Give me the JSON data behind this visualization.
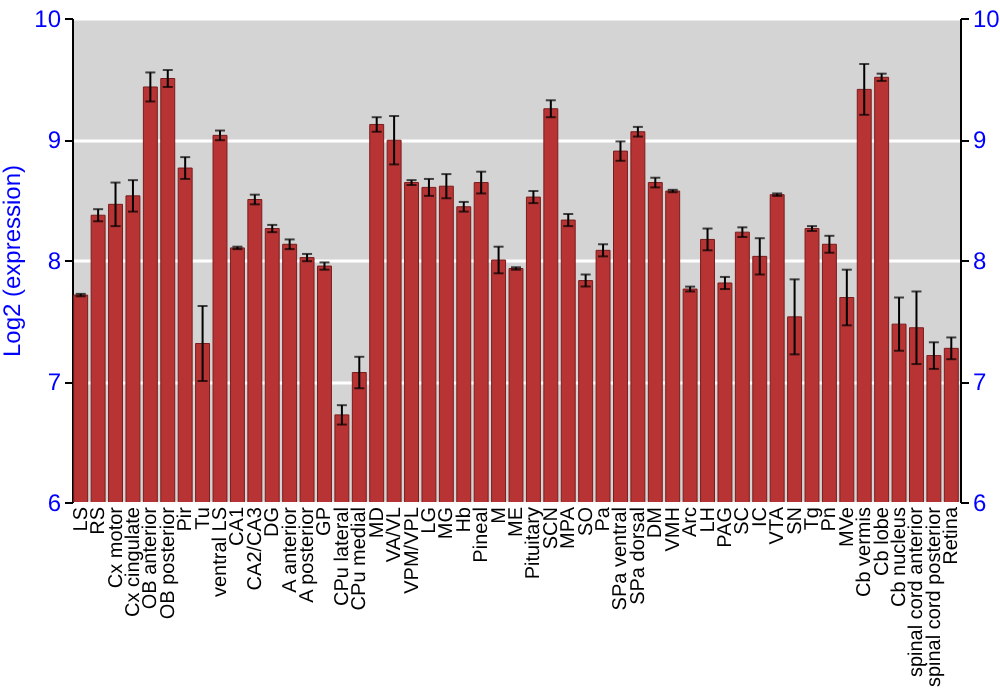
{
  "chart_data": {
    "type": "bar",
    "ylabel": "Log2 (expression)",
    "categories": [
      "LS",
      "RS",
      "Cx motor",
      "Cx cingulate",
      "OB anterior",
      "OB posterior",
      "Pir",
      "Tu",
      "ventral LS",
      "CA1",
      "CA2/CA3",
      "DG",
      "A anterior",
      "A posterior",
      "GP",
      "CPu lateral",
      "CPu medial",
      "MD",
      "VA/VL",
      "VPM/VPL",
      "LG",
      "MG",
      "Hb",
      "Pineal",
      "M",
      "ME",
      "Pituitary",
      "SCN",
      "MPA",
      "SO",
      "Pa",
      "SPa ventral",
      "SPa dorsal",
      "DM",
      "VMH",
      "Arc",
      "LH",
      "PAG",
      "SC",
      "IC",
      "VTA",
      "SN",
      "Tg",
      "Pn",
      "MVe",
      "Cb vermis",
      "Cb lobe",
      "Cb nucleus",
      "spinal cord anterior",
      "spinal cord posterior",
      "Retina"
    ],
    "values": [
      7.71,
      8.37,
      8.46,
      8.53,
      9.43,
      9.5,
      8.76,
      7.31,
      9.03,
      8.1,
      8.5,
      8.26,
      8.13,
      8.02,
      7.95,
      6.72,
      7.07,
      9.12,
      8.99,
      8.64,
      8.6,
      8.61,
      8.44,
      8.64,
      8.0,
      7.93,
      8.52,
      9.25,
      8.33,
      7.83,
      8.08,
      8.9,
      9.06,
      8.64,
      8.57,
      7.76,
      8.17,
      7.81,
      8.23,
      8.03,
      8.54,
      7.53,
      8.26,
      8.13,
      7.69,
      9.41,
      9.51,
      7.47,
      7.44,
      7.21,
      7.27
    ],
    "errors": [
      0.01,
      0.05,
      0.18,
      0.13,
      0.12,
      0.07,
      0.09,
      0.31,
      0.04,
      0.01,
      0.04,
      0.03,
      0.04,
      0.03,
      0.03,
      0.08,
      0.13,
      0.06,
      0.2,
      0.02,
      0.07,
      0.1,
      0.04,
      0.09,
      0.11,
      0.01,
      0.05,
      0.07,
      0.05,
      0.05,
      0.05,
      0.08,
      0.04,
      0.04,
      0.01,
      0.02,
      0.09,
      0.05,
      0.04,
      0.15,
      0.01,
      0.31,
      0.02,
      0.07,
      0.23,
      0.21,
      0.03,
      0.22,
      0.3,
      0.11,
      0.09
    ],
    "color": "#b83434",
    "ylim": [
      6,
      10
    ],
    "yticks": [
      6,
      7,
      8,
      9,
      10
    ],
    "y2lim": [
      6,
      10
    ],
    "y2ticks": [
      6,
      7,
      8,
      9,
      10
    ],
    "grid": "y"
  }
}
